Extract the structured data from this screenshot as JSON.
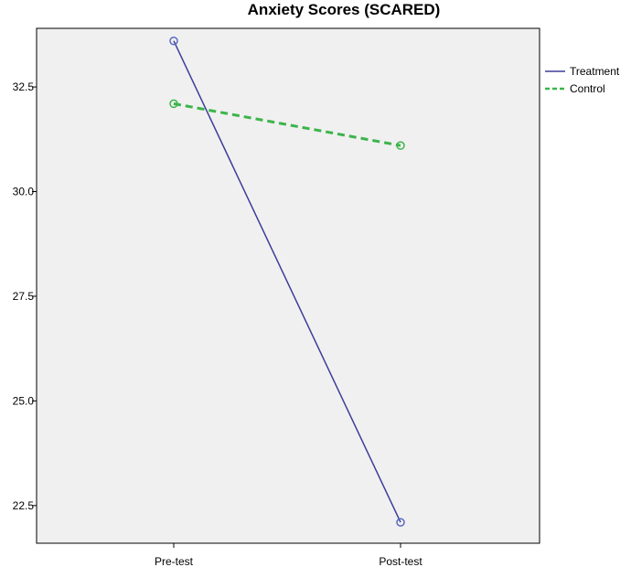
{
  "chart_data": {
    "type": "line",
    "title": "Anxiety Scores (SCARED)",
    "xlabel": "",
    "ylabel": "",
    "categories": [
      "Pre-test",
      "Post-test"
    ],
    "ylim": [
      21.6,
      33.9
    ],
    "yticks": [
      22.5,
      25.0,
      27.5,
      30.0,
      32.5
    ],
    "ytick_labels": [
      "22.5",
      "25.0",
      "27.5",
      "30.0",
      "32.5"
    ],
    "grid": false,
    "legend_position": "right",
    "series": [
      {
        "name": "Treatment",
        "values": [
          33.6,
          22.1
        ],
        "color": "#3d3d99",
        "style": "solid",
        "marker": "circle"
      },
      {
        "name": "Control",
        "values": [
          32.1,
          31.1
        ],
        "color": "#3cb44b",
        "style": "dashed",
        "marker": "circle"
      }
    ]
  },
  "colors": {
    "plot_background": "#f0f0f0",
    "axis": "#000000"
  }
}
